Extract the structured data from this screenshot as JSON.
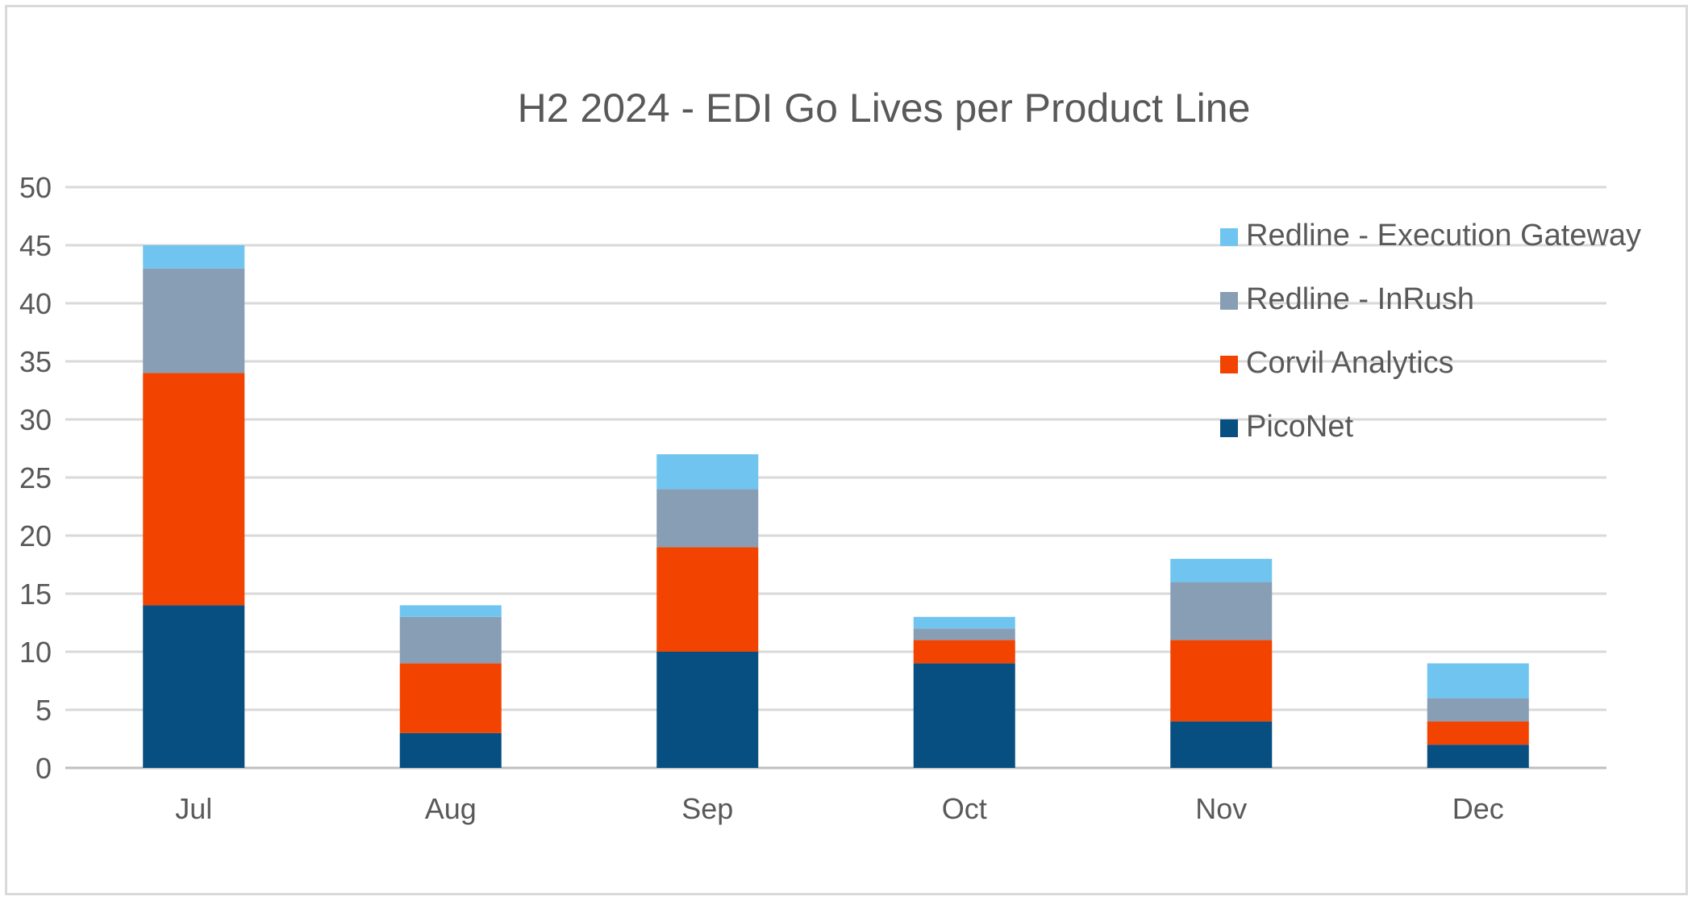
{
  "chart_data": {
    "type": "bar",
    "stacked": true,
    "title": "H2 2024 - EDI Go Lives per Product Line",
    "xlabel": "",
    "ylabel": "",
    "categories": [
      "Jul",
      "Aug",
      "Sep",
      "Oct",
      "Nov",
      "Dec"
    ],
    "ylim": [
      0,
      50
    ],
    "yticks": [
      0,
      5,
      10,
      15,
      20,
      25,
      30,
      35,
      40,
      45,
      50
    ],
    "grid": true,
    "legend_position": "top-right",
    "series": [
      {
        "name": "PicoNet",
        "color": "#074f80",
        "values": [
          14,
          3,
          10,
          9,
          4,
          2
        ]
      },
      {
        "name": "Corvil Analytics",
        "color": "#f24400",
        "values": [
          20,
          6,
          9,
          2,
          7,
          2
        ]
      },
      {
        "name": "Redline - InRush",
        "color": "#889eb4",
        "values": [
          9,
          4,
          5,
          1,
          5,
          2
        ]
      },
      {
        "name": "Redline - Execution Gateway",
        "color": "#6fc5f0",
        "values": [
          2,
          1,
          3,
          1,
          2,
          3
        ]
      }
    ],
    "legend_order": [
      "Redline - Execution Gateway",
      "Redline - InRush",
      "Corvil Analytics",
      "PicoNet"
    ]
  }
}
